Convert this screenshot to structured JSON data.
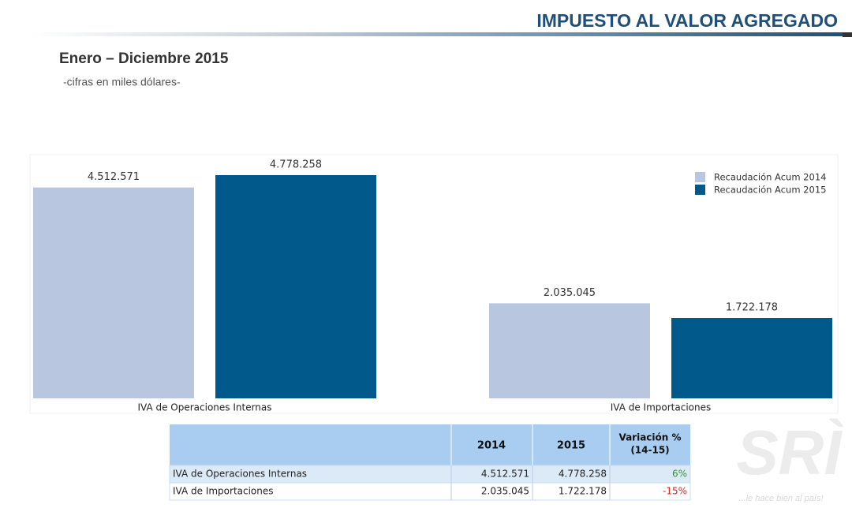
{
  "header": {
    "title": "IMPUESTO AL VALOR AGREGADO",
    "subtitle": "Enero – Diciembre 2015",
    "note": "-cifras en miles dólares-"
  },
  "chart_data": {
    "type": "bar",
    "categories": [
      "IVA de Operaciones Internas",
      "IVA de Importaciones"
    ],
    "series": [
      {
        "name": "Recaudación Acum 2014",
        "color": "#b9c6df",
        "values": [
          4512571,
          2035045
        ],
        "value_labels": [
          "4.512.571",
          "2.035.045"
        ]
      },
      {
        "name": "Recaudación Acum 2015",
        "color": "#00588b",
        "values": [
          4778258,
          1722178
        ],
        "value_labels": [
          "4.778.258",
          "1.722.178"
        ]
      }
    ],
    "legend": "upper right"
  },
  "table": {
    "header": [
      "2014",
      "2015",
      "Variación %",
      "(14-15)"
    ],
    "rows": [
      [
        "IVA de Operaciones Internas",
        "4.512.571",
        "4.778.258",
        "6%"
      ],
      [
        "IVA de Importaciones",
        "2.035.045",
        "1.722.178",
        "-15%"
      ]
    ]
  },
  "logo": {
    "mark": "SRÌ",
    "tagline": "...le hace bien al país!"
  }
}
